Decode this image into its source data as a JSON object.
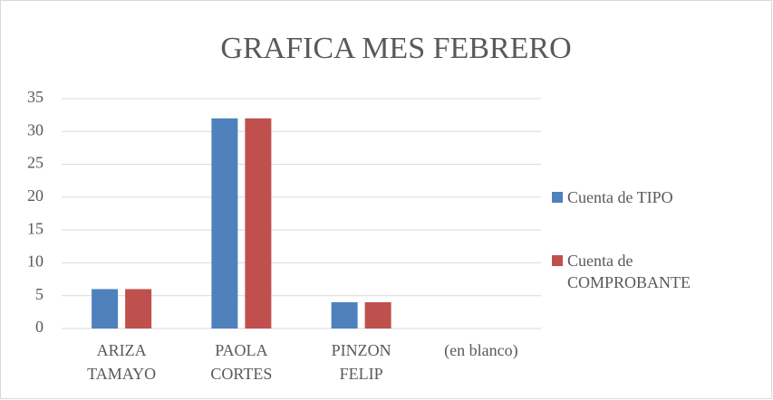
{
  "chart_data": {
    "type": "bar",
    "title": "GRAFICA MES FEBRERO",
    "categories": [
      "ARIZA TAMAYO",
      "PAOLA CORTES",
      "PINZON FELIP",
      "(en blanco)"
    ],
    "series": [
      {
        "name": "Cuenta de TIPO",
        "color": "#4f81bd",
        "values": [
          6,
          32,
          4,
          null
        ]
      },
      {
        "name": "Cuenta de COMPROBANTE",
        "color": "#c0504d",
        "values": [
          6,
          32,
          4,
          null
        ]
      }
    ],
    "ylim": [
      0,
      35
    ],
    "yticks": [
      0,
      5,
      10,
      15,
      20,
      25,
      30,
      35
    ],
    "grid": true,
    "legend": "right"
  }
}
